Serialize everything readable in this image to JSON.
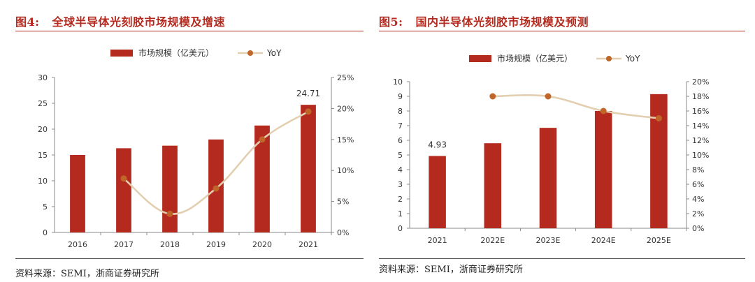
{
  "left": {
    "figure_label": "图4:",
    "figure_title": "全球半导体光刻胶市场规模及增速",
    "source": "资料来源：SEMI，浙商证券研究所"
  },
  "right": {
    "figure_label": "图5:",
    "figure_title": "国内半导体光刻胶市场规模及预测",
    "source": "资料来源：SEMI，浙商证券研究所"
  },
  "chart_data": [
    {
      "type": "bar",
      "title": "",
      "categories": [
        "2016",
        "2017",
        "2018",
        "2019",
        "2020",
        "2021"
      ],
      "series": [
        {
          "name": "市场规模（亿美元）",
          "type": "bar",
          "axis": "left",
          "color": "#b52a1f",
          "values": [
            15.0,
            16.3,
            16.8,
            18.0,
            20.7,
            24.71
          ]
        },
        {
          "name": "YoY",
          "type": "line",
          "axis": "right",
          "color": "#e2cfb0",
          "marker_color": "#c0662a",
          "values": [
            null,
            8.7,
            3.0,
            7.1,
            15.0,
            19.5
          ]
        }
      ],
      "data_labels": [
        {
          "category": "2021",
          "text": "24.71"
        }
      ],
      "ylim": [
        0,
        30
      ],
      "yticks": [
        "0",
        "5",
        "10",
        "15",
        "20",
        "25",
        "30"
      ],
      "y2lim": [
        0,
        25
      ],
      "y2ticks": [
        "0%",
        "5%",
        "10%",
        "15%",
        "20%",
        "25%"
      ],
      "legend_position": "top",
      "grid": false
    },
    {
      "type": "bar",
      "title": "",
      "categories": [
        "2021",
        "2022E",
        "2023E",
        "2024E",
        "2025E"
      ],
      "series": [
        {
          "name": "市场规模（亿美元）",
          "type": "bar",
          "axis": "left",
          "color": "#b52a1f",
          "values": [
            4.93,
            5.8,
            6.85,
            8.0,
            9.15
          ]
        },
        {
          "name": "YoY",
          "type": "line",
          "axis": "right",
          "color": "#e2cfb0",
          "marker_color": "#c0662a",
          "values": [
            null,
            18.0,
            18.0,
            16.0,
            15.0
          ]
        }
      ],
      "data_labels": [
        {
          "category": "2021",
          "text": "4.93"
        }
      ],
      "ylim": [
        0,
        10
      ],
      "yticks": [
        "0",
        "1",
        "2",
        "3",
        "4",
        "5",
        "6",
        "7",
        "8",
        "9",
        "10"
      ],
      "y2lim": [
        0,
        20
      ],
      "y2ticks": [
        "0%",
        "2%",
        "4%",
        "6%",
        "8%",
        "10%",
        "12%",
        "14%",
        "16%",
        "18%",
        "20%"
      ],
      "legend_position": "top",
      "grid": false
    }
  ]
}
